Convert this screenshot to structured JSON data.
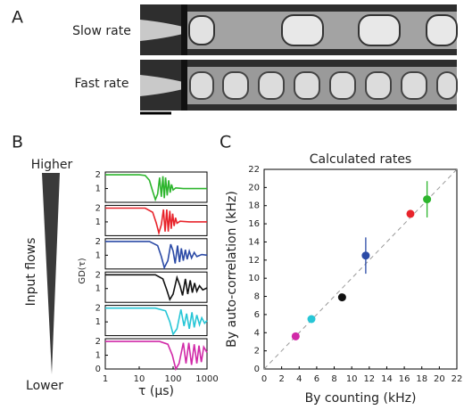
{
  "labels": {
    "a": "A",
    "b": "B",
    "c": "C",
    "slow": "Slow rate",
    "fast": "Fast rate",
    "higher": "Higher",
    "input": "Input flows",
    "lower": "Lower"
  },
  "chart_data": [
    {
      "type": "line",
      "xscale": "log",
      "xlim": [
        1,
        1000
      ],
      "ylim": [
        0,
        2.2
      ],
      "yticks": [
        1,
        2
      ],
      "series": [
        {
          "color": "#2db52d",
          "x": [
            1,
            10,
            15,
            20,
            25,
            30,
            35,
            40,
            45,
            50,
            55,
            60,
            67,
            74,
            82,
            90,
            100,
            120,
            200,
            1000
          ],
          "values": [
            2,
            2,
            1.95,
            1.6,
            0.8,
            0.2,
            0.6,
            1.8,
            0.4,
            1.9,
            0.3,
            1.8,
            0.5,
            1.6,
            0.7,
            1.3,
            0.9,
            1.05,
            1,
            1
          ]
        }
      ]
    },
    {
      "type": "line",
      "xscale": "log",
      "xlim": [
        1,
        1000
      ],
      "ylim": [
        0,
        2.2
      ],
      "yticks": [
        1,
        2
      ],
      "series": [
        {
          "color": "#e8242b",
          "x": [
            1,
            15,
            25,
            32,
            38,
            45,
            52,
            58,
            65,
            72,
            80,
            88,
            97,
            107,
            118,
            130,
            160,
            300,
            1000
          ],
          "values": [
            2,
            2,
            1.7,
            0.9,
            0.2,
            0.8,
            1.9,
            0.3,
            1.9,
            0.3,
            1.8,
            0.5,
            1.6,
            0.7,
            1.3,
            0.9,
            1.05,
            1,
            1
          ]
        }
      ]
    },
    {
      "type": "line",
      "xscale": "log",
      "xlim": [
        1,
        1000
      ],
      "ylim": [
        0,
        2.2
      ],
      "yticks": [
        1,
        2
      ],
      "series": [
        {
          "color": "#2b4aa6",
          "x": [
            1,
            20,
            35,
            45,
            55,
            70,
            85,
            100,
            115,
            135,
            155,
            175,
            200,
            230,
            260,
            300,
            350,
            420,
            500,
            700,
            1000
          ],
          "values": [
            2,
            2,
            1.7,
            0.9,
            0.1,
            0.6,
            1.8,
            1.3,
            0.4,
            1.7,
            0.5,
            1.5,
            0.6,
            1.4,
            0.7,
            1.3,
            0.8,
            1.2,
            0.9,
            1.05,
            1
          ]
        }
      ]
    },
    {
      "type": "line",
      "xscale": "log",
      "xlim": [
        1,
        1000
      ],
      "ylim": [
        0,
        2.2
      ],
      "yticks": [
        1,
        2
      ],
      "series": [
        {
          "color": "#111111",
          "x": [
            1,
            30,
            50,
            65,
            80,
            100,
            130,
            160,
            190,
            230,
            270,
            320,
            370,
            430,
            500,
            600,
            750,
            1000
          ],
          "values": [
            2,
            2,
            1.7,
            0.9,
            0.2,
            0.6,
            1.8,
            1.2,
            0.5,
            1.7,
            0.6,
            1.6,
            0.7,
            1.4,
            0.8,
            1.2,
            0.9,
            1.05
          ]
        }
      ]
    },
    {
      "type": "line",
      "xscale": "log",
      "xlim": [
        1,
        1000
      ],
      "ylim": [
        0,
        2.2
      ],
      "yticks": [
        1,
        2
      ],
      "series": [
        {
          "color": "#27c6d6",
          "x": [
            1,
            30,
            60,
            80,
            100,
            130,
            170,
            210,
            250,
            300,
            360,
            420,
            500,
            600,
            700,
            850,
            1000
          ],
          "values": [
            2,
            2,
            1.8,
            1,
            0.1,
            0.5,
            1.9,
            0.7,
            1.6,
            0.5,
            1.7,
            0.6,
            1.5,
            0.8,
            1.3,
            0.9,
            1.1
          ]
        }
      ]
    },
    {
      "type": "line",
      "xscale": "log",
      "xlim": [
        1,
        1000
      ],
      "ylim": [
        0,
        2.2
      ],
      "yticks": [
        0,
        1,
        2
      ],
      "xticks": [
        1,
        10,
        100,
        1000
      ],
      "xlabel": "τ (μs)",
      "ylabel": "GD(τ)",
      "series": [
        {
          "color": "#d12aa8",
          "x": [
            1,
            40,
            70,
            95,
            120,
            150,
            200,
            240,
            290,
            350,
            420,
            500,
            580,
            680,
            800,
            1000
          ],
          "values": [
            2,
            2,
            1.8,
            1,
            0,
            0.4,
            1.9,
            0.4,
            1.9,
            0.3,
            1.8,
            0.4,
            1.7,
            0.5,
            1.6,
            1.2
          ]
        }
      ]
    },
    {
      "type": "scatter",
      "title": "Calculated rates",
      "xlabel": "By counting (kHz)",
      "ylabel": "By auto-correlation (kHz)",
      "xlim": [
        0,
        22
      ],
      "ylim": [
        0,
        22
      ],
      "xticks": [
        0,
        2,
        4,
        6,
        8,
        10,
        12,
        14,
        16,
        18,
        20,
        22
      ],
      "yticks": [
        0,
        2,
        4,
        6,
        8,
        10,
        12,
        14,
        16,
        18,
        20,
        22
      ],
      "x": [
        3.6,
        5.4,
        8.9,
        11.6,
        16.7,
        18.6
      ],
      "values": [
        3.6,
        5.5,
        7.9,
        12.5,
        17.1,
        18.7
      ],
      "errors": [
        null,
        null,
        null,
        2,
        null,
        2
      ],
      "colors": [
        "#d12aa8",
        "#27c6d6",
        "#111111",
        "#2b4aa6",
        "#e8242b",
        "#2db52d"
      ]
    }
  ]
}
